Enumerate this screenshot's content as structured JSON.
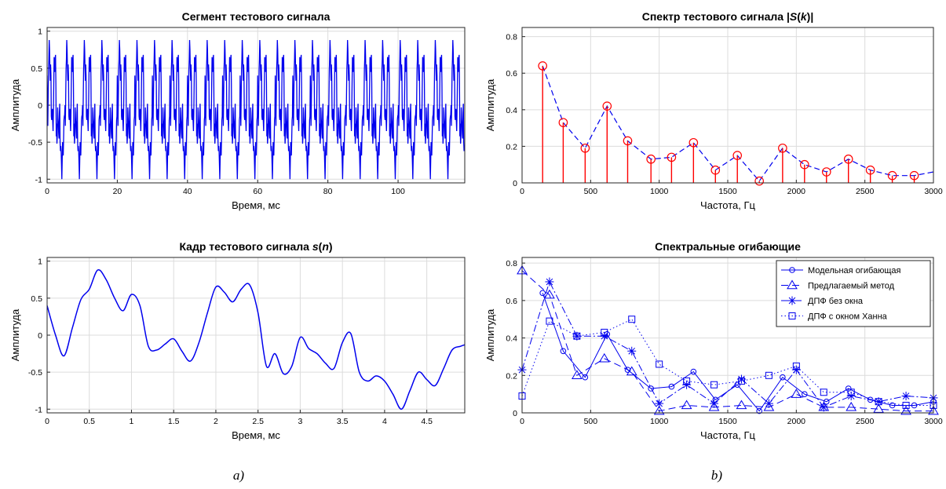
{
  "chart_data": [
    {
      "id": "p1",
      "type": "line",
      "title": "Сегмент тестового сигнала",
      "xlabel": "Время, мс",
      "ylabel": "Амплитуда",
      "xlim": [
        0,
        119
      ],
      "ylim": [
        -1.05,
        1.05
      ],
      "xticks": [
        0,
        20,
        40,
        60,
        80,
        100
      ],
      "yticks": [
        -1,
        -0.5,
        0,
        0.5,
        1
      ],
      "grid": true,
      "series": [
        {
          "color": "#0000ee",
          "periodic": true,
          "period_ms": 5,
          "x_start": 0,
          "x_end": 119,
          "base_frame_x": [
            0,
            0.1,
            0.2,
            0.3,
            0.4,
            0.5,
            0.6,
            0.7,
            0.8,
            0.9,
            1.0,
            1.1,
            1.2,
            1.3,
            1.4,
            1.5,
            1.6,
            1.7,
            1.8,
            1.9,
            2.0,
            2.1,
            2.2,
            2.3,
            2.4,
            2.5,
            2.6,
            2.7,
            2.8,
            2.9,
            3.0,
            3.1,
            3.2,
            3.3,
            3.4,
            3.5,
            3.6,
            3.7,
            3.8,
            3.9,
            4.0,
            4.1,
            4.2,
            4.3,
            4.4,
            4.5,
            4.6,
            4.7,
            4.8,
            4.9,
            5.0
          ],
          "base_frame_y": [
            0.4,
            0.0,
            -0.28,
            0.1,
            0.48,
            0.62,
            0.88,
            0.75,
            0.5,
            0.33,
            0.55,
            0.4,
            -0.15,
            -0.2,
            -0.12,
            -0.05,
            -0.22,
            -0.35,
            -0.1,
            0.3,
            0.65,
            0.58,
            0.45,
            0.62,
            0.68,
            0.3,
            -0.42,
            -0.25,
            -0.52,
            -0.42,
            -0.03,
            -0.18,
            -0.25,
            -0.38,
            -0.45,
            -0.1,
            0.02,
            -0.5,
            -0.62,
            -0.55,
            -0.62,
            -0.8,
            -1.0,
            -0.75,
            -0.5,
            -0.6,
            -0.68,
            -0.45,
            -0.2,
            -0.15,
            -0.13
          ]
        }
      ]
    },
    {
      "id": "p2",
      "type": "stem",
      "title": "Спектр тестового сигнала |S(k)|",
      "xlabel": "Частота, Гц",
      "ylabel": "Амплитуда",
      "xlim": [
        0,
        3000
      ],
      "ylim": [
        0,
        0.85
      ],
      "xticks": [
        0,
        500,
        1000,
        1500,
        2000,
        2500,
        3000
      ],
      "yticks": [
        0,
        0.2,
        0.4,
        0.6,
        0.8
      ],
      "grid": true,
      "stem_color": "#ff0000",
      "envelope_color": "#0000ee",
      "x": [
        150,
        300,
        460,
        620,
        770,
        940,
        1090,
        1250,
        1410,
        1570,
        1730,
        1900,
        2060,
        2220,
        2380,
        2540,
        2700,
        2860
      ],
      "values": [
        0.64,
        0.33,
        0.19,
        0.42,
        0.23,
        0.13,
        0.14,
        0.22,
        0.07,
        0.15,
        0.01,
        0.19,
        0.1,
        0.06,
        0.13,
        0.07,
        0.04,
        0.04
      ],
      "envelope_tail": [
        3000,
        0.06
      ]
    },
    {
      "id": "p3",
      "type": "line",
      "title": "Кадр тестового сигнала s(n)",
      "xlabel": "Время, мс",
      "ylabel": "Амплитуда",
      "xlim": [
        0,
        4.95
      ],
      "ylim": [
        -1.05,
        1.05
      ],
      "xticks": [
        0,
        0.5,
        1,
        1.5,
        2,
        2.5,
        3,
        3.5,
        4,
        4.5
      ],
      "yticks": [
        -1,
        -0.5,
        0,
        0.5,
        1
      ],
      "grid": true,
      "series": [
        {
          "color": "#0000ee",
          "x": [
            0,
            0.1,
            0.2,
            0.3,
            0.4,
            0.5,
            0.6,
            0.7,
            0.8,
            0.9,
            1.0,
            1.1,
            1.2,
            1.3,
            1.4,
            1.5,
            1.6,
            1.7,
            1.8,
            1.9,
            2.0,
            2.1,
            2.2,
            2.3,
            2.4,
            2.5,
            2.6,
            2.7,
            2.8,
            2.9,
            3.0,
            3.1,
            3.2,
            3.3,
            3.4,
            3.5,
            3.6,
            3.7,
            3.8,
            3.9,
            4.0,
            4.1,
            4.2,
            4.3,
            4.4,
            4.5,
            4.6,
            4.7,
            4.8,
            4.9,
            4.95
          ],
          "y": [
            0.4,
            0.0,
            -0.28,
            0.1,
            0.48,
            0.62,
            0.88,
            0.75,
            0.5,
            0.33,
            0.55,
            0.4,
            -0.15,
            -0.2,
            -0.12,
            -0.05,
            -0.22,
            -0.35,
            -0.1,
            0.3,
            0.65,
            0.58,
            0.45,
            0.62,
            0.68,
            0.3,
            -0.42,
            -0.25,
            -0.52,
            -0.42,
            -0.03,
            -0.18,
            -0.25,
            -0.38,
            -0.45,
            -0.1,
            0.02,
            -0.5,
            -0.62,
            -0.55,
            -0.62,
            -0.8,
            -1.0,
            -0.75,
            -0.5,
            -0.6,
            -0.68,
            -0.45,
            -0.2,
            -0.15,
            -0.13
          ]
        }
      ]
    },
    {
      "id": "p4",
      "type": "line",
      "title": "Спектральные огибающие",
      "xlabel": "Частота, Гц",
      "ylabel": "Амплитуда",
      "xlim": [
        0,
        3000
      ],
      "ylim": [
        0,
        0.83
      ],
      "xticks": [
        0,
        500,
        1000,
        1500,
        2000,
        2500,
        3000
      ],
      "yticks": [
        0,
        0.2,
        0.4,
        0.6,
        0.8
      ],
      "grid": true,
      "legend": "top-right",
      "series": [
        {
          "name": "Модельная огибающая",
          "color": "#0000ee",
          "dash": "",
          "marker": "circle",
          "x": [
            150,
            300,
            460,
            620,
            770,
            940,
            1090,
            1250,
            1410,
            1570,
            1730,
            1900,
            2060,
            2220,
            2380,
            2540,
            2700,
            2860,
            3000
          ],
          "y": [
            0.64,
            0.33,
            0.19,
            0.42,
            0.23,
            0.13,
            0.14,
            0.22,
            0.07,
            0.15,
            0.01,
            0.19,
            0.1,
            0.06,
            0.13,
            0.07,
            0.04,
            0.04,
            0.06
          ]
        },
        {
          "name": "Предлагаемый метод",
          "color": "#0000ee",
          "dash": "9,5",
          "marker": "triangle",
          "x": [
            0,
            200,
            400,
            600,
            800,
            1000,
            1200,
            1400,
            1600,
            1800,
            2000,
            2200,
            2400,
            2600,
            2800,
            3000
          ],
          "y": [
            0.76,
            0.63,
            0.2,
            0.29,
            0.22,
            0.01,
            0.04,
            0.03,
            0.04,
            0.03,
            0.1,
            0.03,
            0.03,
            0.02,
            0.01,
            0.01
          ]
        },
        {
          "name": "ДПФ без окна",
          "color": "#0000ee",
          "dash": "9,3,2,3",
          "marker": "star",
          "x": [
            0,
            200,
            400,
            600,
            800,
            1000,
            1200,
            1400,
            1600,
            1800,
            2000,
            2200,
            2400,
            2600,
            2800,
            3000
          ],
          "y": [
            0.23,
            0.7,
            0.41,
            0.41,
            0.33,
            0.05,
            0.15,
            0.05,
            0.18,
            0.05,
            0.23,
            0.03,
            0.09,
            0.06,
            0.09,
            0.08
          ]
        },
        {
          "name": "ДПФ с окном Ханна",
          "color": "#0000ee",
          "dash": "1.5,3",
          "marker": "square",
          "x": [
            0,
            200,
            400,
            600,
            800,
            1000,
            1200,
            1400,
            1600,
            1800,
            2000,
            2200,
            2400,
            2600,
            2800,
            3000
          ],
          "y": [
            0.09,
            0.49,
            0.41,
            0.43,
            0.5,
            0.26,
            0.17,
            0.15,
            0.17,
            0.2,
            0.25,
            0.11,
            0.11,
            0.06,
            0.04,
            0.04
          ]
        }
      ]
    }
  ],
  "captions": {
    "left": "a)",
    "right": "b)"
  }
}
